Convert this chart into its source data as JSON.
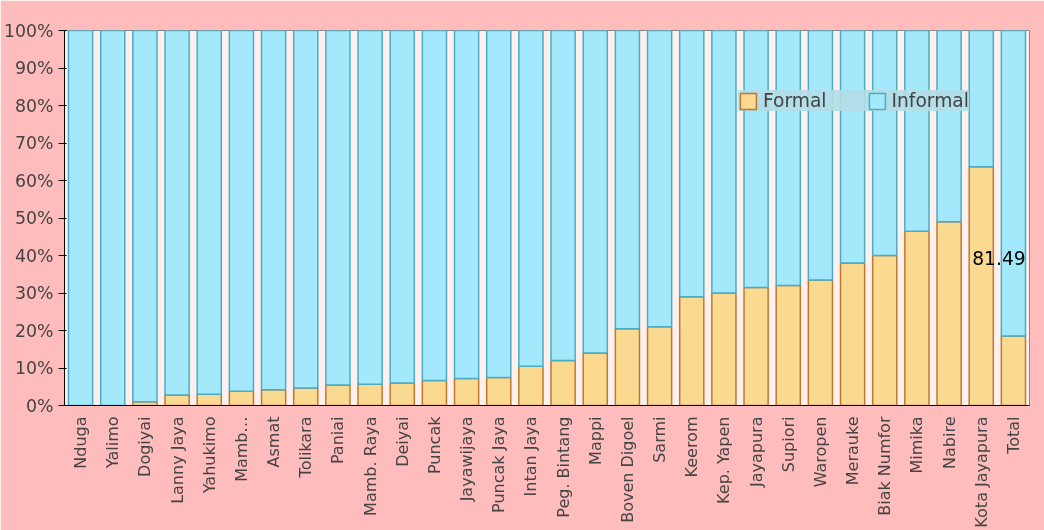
{
  "chart_data": {
    "type": "bar",
    "stacked": true,
    "categories": [
      "Nduga",
      "Yalimo",
      "Dogiyai",
      "Lanny Jaya",
      "Yahukimo",
      "Mamb…",
      "Asmat",
      "Tolikara",
      "Paniai",
      "Mamb. Raya",
      "Deiyai",
      "Puncak",
      "Jayawijaya",
      "Puncak Jaya",
      "Intan Jaya",
      "Peg. Bintang",
      "Mappi",
      "Boven Digoel",
      "Sarmi",
      "Keerom",
      "Kep. Yapen",
      "Jayapura",
      "Supiori",
      "Waropen",
      "Merauke",
      "Biak Numfor",
      "Mimika",
      "Nabire",
      "Kota Jayapura",
      "Total"
    ],
    "series": [
      {
        "name": "Formal",
        "color": "#fad990",
        "values": [
          0,
          0,
          1,
          2.8,
          3,
          3.8,
          4.2,
          4.7,
          5.5,
          5.7,
          6,
          6.7,
          7.2,
          7.5,
          10.5,
          12,
          14,
          20.5,
          21,
          29,
          30,
          31.5,
          32,
          33.5,
          38,
          40,
          46.5,
          49,
          63.7,
          18.51
        ]
      },
      {
        "name": "Informal",
        "color": "#a3e9fb",
        "values": [
          100,
          100,
          99,
          97.2,
          97,
          96.2,
          95.8,
          95.3,
          94.5,
          94.3,
          94,
          93.3,
          92.8,
          92.5,
          89.5,
          88,
          86,
          79.5,
          79,
          71,
          70,
          68.5,
          68,
          66.5,
          62,
          60,
          53.5,
          51,
          36.3,
          81.49
        ],
        "value_labels": [
          null,
          null,
          null,
          null,
          null,
          null,
          null,
          null,
          null,
          null,
          null,
          null,
          null,
          null,
          null,
          null,
          null,
          null,
          null,
          null,
          null,
          null,
          null,
          null,
          null,
          null,
          null,
          null,
          null,
          "81.49"
        ]
      }
    ],
    "ylim": [
      0,
      100
    ],
    "yticks": [
      {
        "value": 0,
        "label": "0%"
      },
      {
        "value": 10,
        "label": "10%"
      },
      {
        "value": 20,
        "label": "20%"
      },
      {
        "value": 30,
        "label": "30%"
      },
      {
        "value": 40,
        "label": "40%"
      },
      {
        "value": 50,
        "label": "50%"
      },
      {
        "value": 60,
        "label": "60%"
      },
      {
        "value": 70,
        "label": "70%"
      },
      {
        "value": 80,
        "label": "80%"
      },
      {
        "value": 90,
        "label": "90%"
      },
      {
        "value": 100,
        "label": "100%"
      }
    ],
    "grid": false,
    "legend": "top right"
  }
}
